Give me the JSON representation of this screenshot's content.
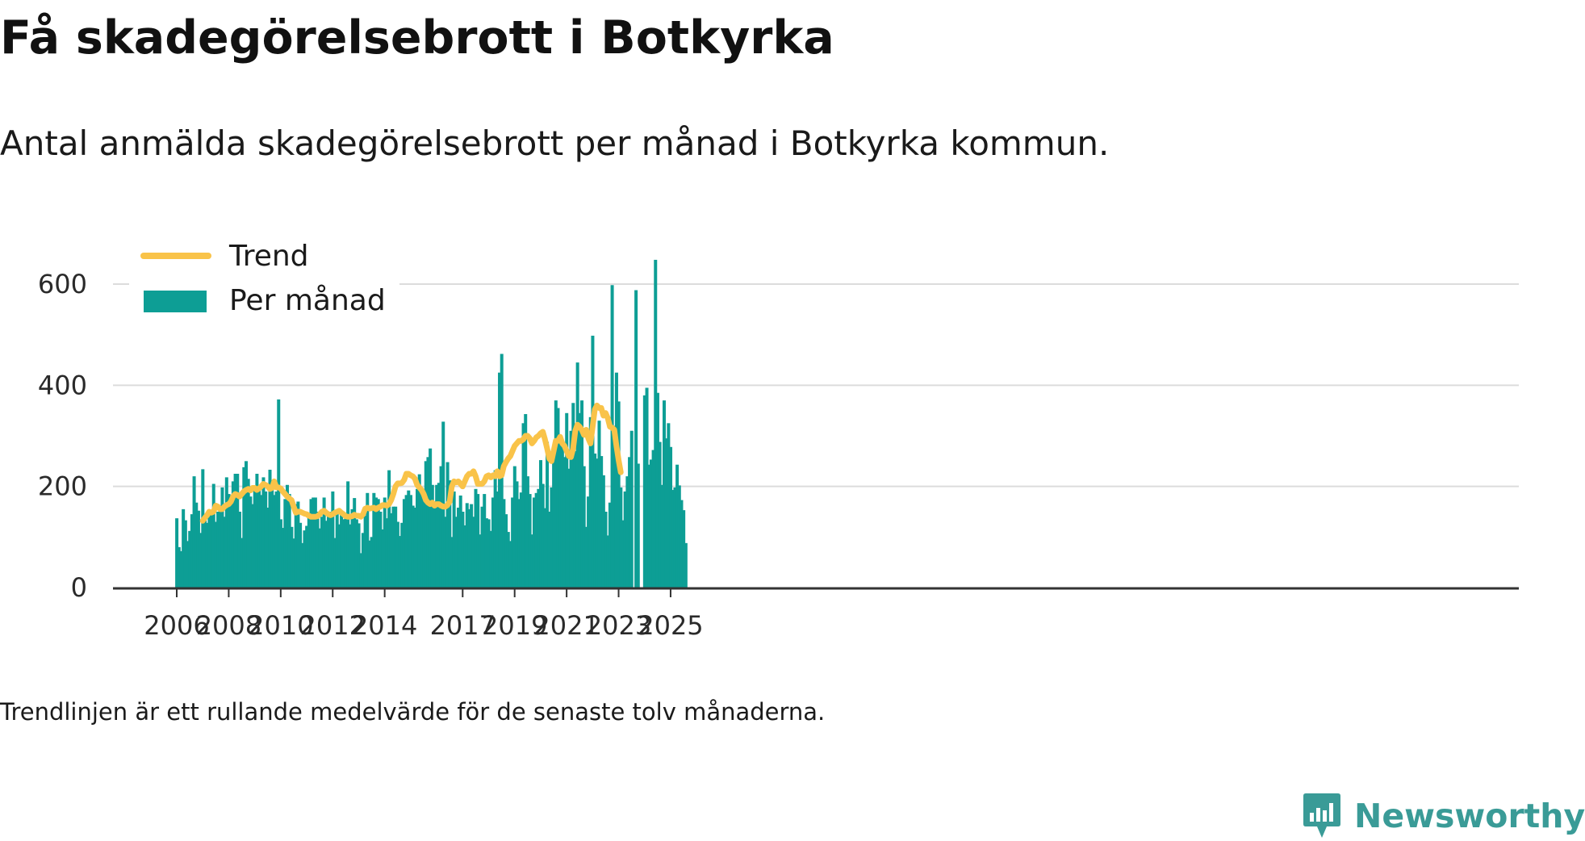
{
  "title": "Få skadegörelsebrott i Botkyrka",
  "subtitle": "Antal anmälda skadegörelsebrott per månad i Botkyrka kommun.",
  "note": "Trendlinjen är ett rullande medelvärde för de senaste tolv månaderna.",
  "brand": "Newsworthy",
  "colors": {
    "bars": "#0d9e95",
    "trend": "#f9c349",
    "grid": "#dcdcdc",
    "axis": "#333333",
    "brand": "#3a9b97"
  },
  "icons": {
    "logo": "newsworthy-bar-chart-icon"
  },
  "chart_data": {
    "type": "bar",
    "title": "Få skadegörelsebrott i Botkyrka",
    "xlabel": "",
    "ylabel": "",
    "start": "2006-01",
    "frequency": "monthly",
    "ylim": [
      0,
      700
    ],
    "yticks": [
      0,
      200,
      400,
      600
    ],
    "xticks": [
      "2006",
      "2008",
      "2010",
      "2012",
      "2014",
      "2017",
      "2019",
      "2021",
      "2023",
      "2025"
    ],
    "grid": true,
    "legend_position": "top-left",
    "series": [
      {
        "name": "Per månad",
        "kind": "bar",
        "values": [
          137,
          80,
          72,
          155,
          133,
          92,
          112,
          145,
          220,
          168,
          152,
          108,
          234,
          138,
          128,
          148,
          152,
          205,
          130,
          150,
          152,
          198,
          140,
          218,
          185,
          168,
          210,
          225,
          225,
          150,
          98,
          238,
          250,
          215,
          180,
          165,
          198,
          225,
          200,
          183,
          218,
          190,
          158,
          233,
          200,
          183,
          190,
          372,
          135,
          118,
          175,
          203,
          185,
          120,
          97,
          165,
          170,
          128,
          88,
          113,
          122,
          145,
          175,
          178,
          178,
          150,
          117,
          140,
          178,
          132,
          140,
          150,
          190,
          98,
          145,
          125,
          148,
          135,
          145,
          210,
          125,
          155,
          177,
          135,
          127,
          68,
          108,
          142,
          187,
          93,
          100,
          187,
          178,
          175,
          150,
          115,
          178,
          137,
          232,
          147,
          160,
          160,
          130,
          102,
          128,
          175,
          183,
          192,
          183,
          162,
          158,
          195,
          224,
          198,
          190,
          250,
          258,
          275,
          203,
          157,
          203,
          207,
          240,
          328,
          140,
          248,
          212,
          100,
          190,
          140,
          158,
          182,
          150,
          123,
          167,
          155,
          165,
          140,
          195,
          185,
          105,
          160,
          185,
          137,
          135,
          112,
          178,
          232,
          190,
          425,
          462,
          175,
          145,
          110,
          92,
          178,
          240,
          210,
          175,
          188,
          325,
          343,
          220,
          185,
          105,
          178,
          187,
          195,
          252,
          205,
          157,
          288,
          150,
          198,
          268,
          370,
          355,
          285,
          282,
          258,
          345,
          235,
          310,
          365,
          270,
          445,
          345,
          370,
          240,
          120,
          180,
          337,
          498,
          265,
          255,
          330,
          260,
          222,
          150,
          103,
          168,
          598,
          320,
          425,
          368,
          198,
          133,
          190,
          220,
          258,
          310,
          0,
          588,
          245,
          0,
          0,
          380,
          395,
          243,
          253,
          272,
          648,
          385,
          288,
          203,
          370,
          295,
          325,
          278,
          193,
          198,
          243,
          202,
          173,
          153,
          88
        ]
      },
      {
        "name": "Trend",
        "kind": "line",
        "start": "2007-01",
        "values": [
          132,
          138,
          143,
          150,
          148,
          150,
          162,
          160,
          155,
          155,
          160,
          163,
          165,
          170,
          180,
          185,
          183,
          180,
          185,
          190,
          193,
          195,
          192,
          197,
          197,
          193,
          196,
          200,
          205,
          203,
          200,
          195,
          197,
          210,
          198,
          198,
          196,
          190,
          185,
          180,
          176,
          173,
          160,
          148,
          150,
          150,
          148,
          146,
          145,
          142,
          140,
          140,
          140,
          141,
          145,
          150,
          152,
          148,
          145,
          143,
          145,
          148,
          150,
          152,
          148,
          145,
          141,
          140,
          140,
          141,
          144,
          142,
          142,
          140,
          145,
          156,
          158,
          156,
          157,
          158,
          155,
          158,
          160,
          163,
          163,
          162,
          165,
          173,
          185,
          200,
          206,
          206,
          207,
          213,
          225,
          225,
          222,
          220,
          215,
          203,
          198,
          193,
          185,
          173,
          168,
          165,
          168,
          162,
          165,
          165,
          162,
          160,
          160,
          163,
          170,
          200,
          210,
          208,
          210,
          205,
          200,
          210,
          220,
          225,
          225,
          230,
          220,
          205,
          205,
          205,
          210,
          220,
          222,
          218,
          222,
          220,
          230,
          220,
          222,
          240,
          248,
          255,
          260,
          270,
          280,
          285,
          290,
          290,
          293,
          300,
          300,
          295,
          285,
          290,
          297,
          300,
          305,
          308,
          293,
          275,
          255,
          250,
          270,
          290,
          290,
          298,
          285,
          280,
          270,
          260,
          258,
          275,
          310,
          322,
          318,
          312,
          302,
          312,
          295,
          285,
          318,
          352,
          360,
          355,
          355,
          340,
          345,
          335,
          318,
          316,
          312,
          280,
          252,
          228
        ]
      }
    ]
  }
}
